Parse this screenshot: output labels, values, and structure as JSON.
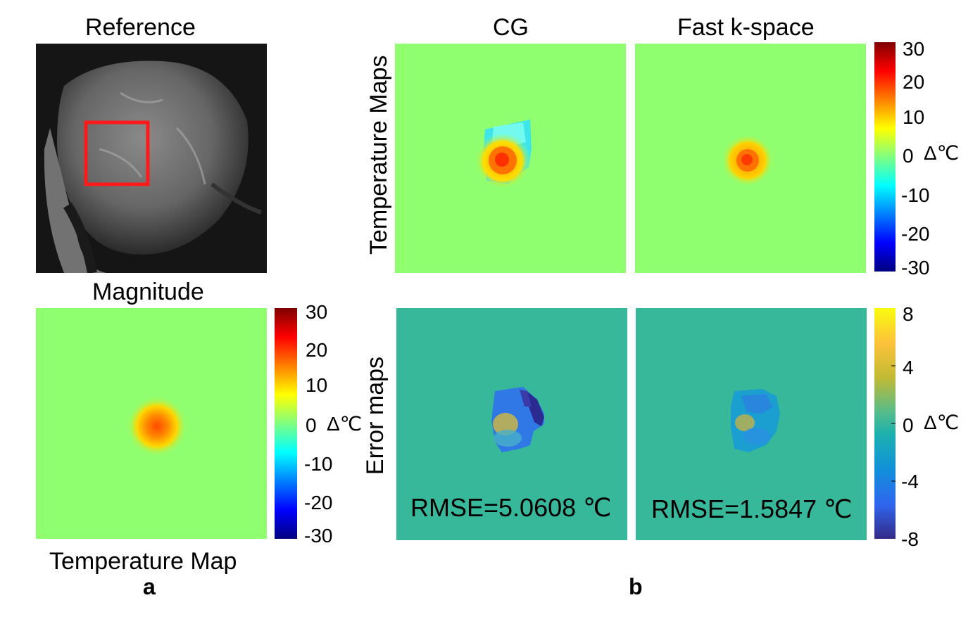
{
  "panel_a": {
    "reference_title": "Reference",
    "magnitude_title": "Magnitude",
    "caption": "Temperature Map",
    "letter": "a",
    "colorbar": {
      "ticks": [
        "30",
        "20",
        "10",
        "0",
        "-10",
        "-20",
        "-30"
      ],
      "unit": "Δ℃",
      "range": [
        -30,
        30
      ]
    }
  },
  "panel_b": {
    "col_titles": [
      "CG",
      "Fast k-space"
    ],
    "row_labels": [
      "Temperature Maps",
      "Error maps"
    ],
    "letter": "b",
    "temp_colorbar": {
      "ticks": [
        "30",
        "20",
        "10",
        "0",
        "-10",
        "-20",
        "-30"
      ],
      "unit": "Δ℃",
      "range": [
        -30,
        30
      ]
    },
    "error_colorbar": {
      "ticks": [
        "8",
        "4",
        "0",
        "-4",
        "-8"
      ],
      "unit": "Δ℃",
      "range": [
        -8,
        8
      ]
    },
    "rmse": [
      "RMSE=5.0608 ℃",
      "RMSE=1.5847 ℃"
    ]
  },
  "colors": {
    "temp_background": "#8fff70",
    "error_background": "#38b89b",
    "roi_box": "#ff1a1a"
  }
}
